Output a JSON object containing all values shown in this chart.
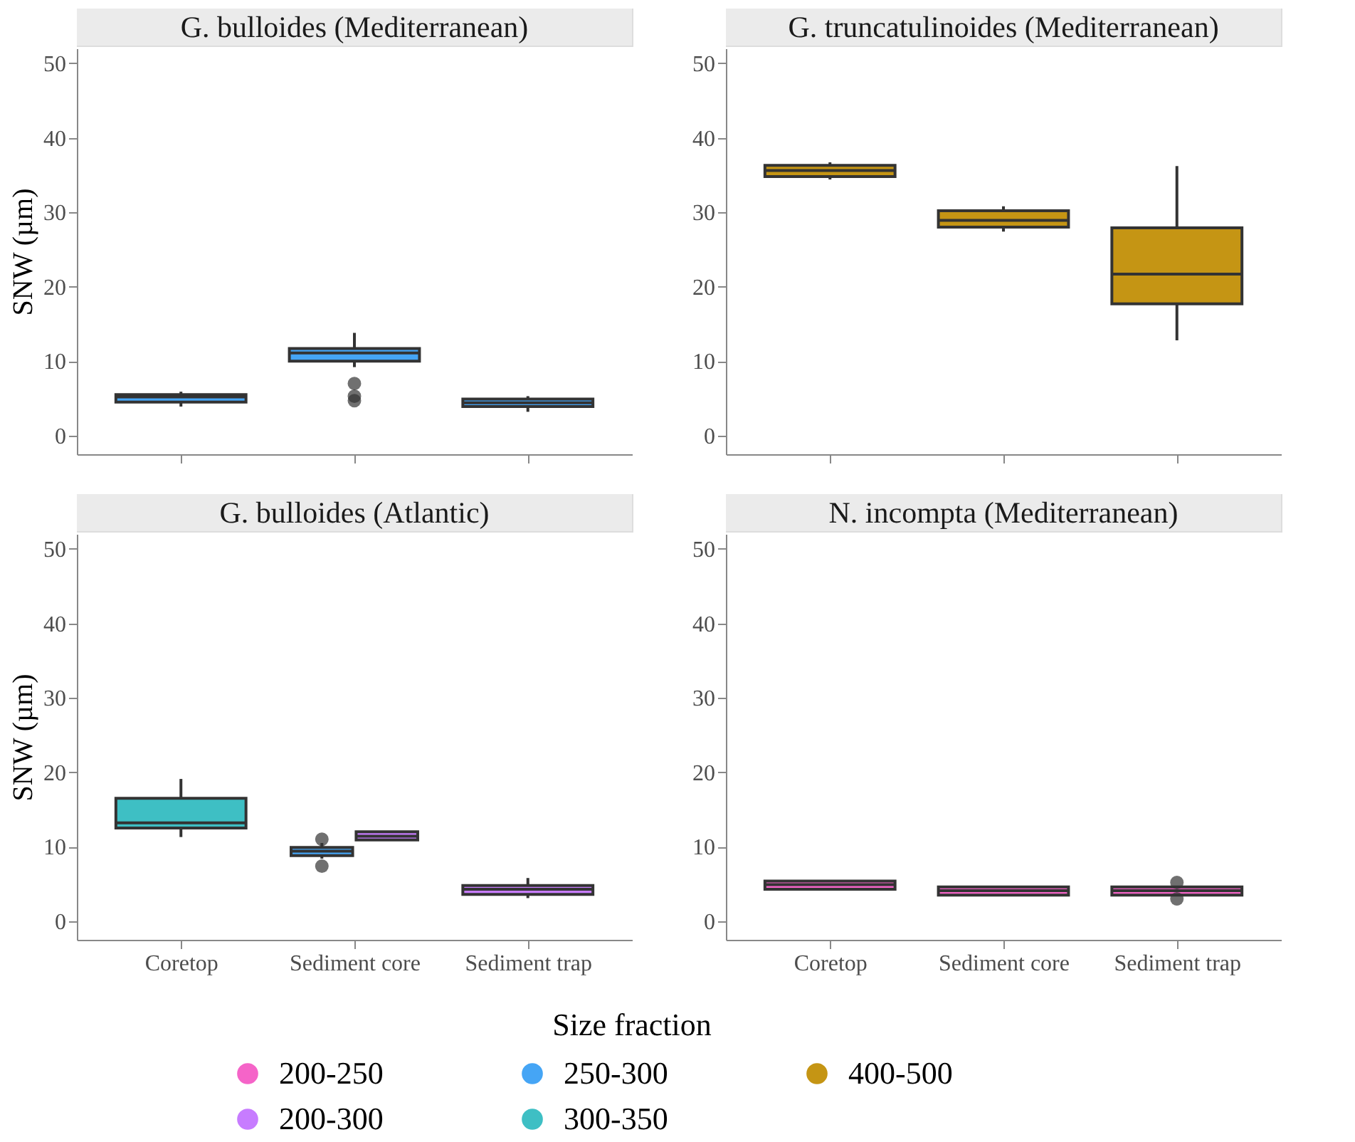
{
  "chart_data": [
    {
      "type": "box",
      "title": "G. bulloides (Mediterranean)",
      "ylabel": "SNW (µm)",
      "categories": [
        "Coretop",
        "Sediment core",
        "Sediment trap"
      ],
      "ylim": [
        -2.5,
        52
      ],
      "yticks": [
        0,
        10,
        20,
        30,
        40,
        50
      ],
      "tick_labels": "y",
      "legend": "bottom",
      "series": [
        {
          "name": "250-300",
          "color": "#45a5f5",
          "boxes": [
            {
              "low": 3.9,
              "q1": 4.5,
              "median": 5.2,
              "q3": 5.5,
              "high": 5.9
            },
            {
              "low": 9.2,
              "q1": 10.0,
              "median": 11.1,
              "q3": 11.7,
              "high": 13.8,
              "outliers": [
                7.0,
                5.3,
                4.7
              ]
            },
            {
              "low": 3.2,
              "q1": 3.9,
              "median": 4.4,
              "q3": 4.9,
              "high": 5.3
            }
          ]
        }
      ]
    },
    {
      "type": "box",
      "title": "G. truncatulinoides (Mediterranean)",
      "categories": [
        "Coretop",
        "Sediment core",
        "Sediment trap"
      ],
      "ylim": [
        -2.5,
        52
      ],
      "yticks": [
        0,
        10,
        20,
        30,
        40,
        50
      ],
      "tick_labels": "y",
      "legend": "bottom",
      "series": [
        {
          "name": "400-500",
          "color": "#c59514",
          "boxes": [
            {
              "low": 34.4,
              "q1": 34.8,
              "median": 35.6,
              "q3": 36.3,
              "high": 36.7
            },
            {
              "low": 27.4,
              "q1": 28.0,
              "median": 28.9,
              "q3": 30.2,
              "high": 30.8
            },
            {
              "low": 12.8,
              "q1": 17.7,
              "median": 21.7,
              "q3": 27.9,
              "high": 36.2
            }
          ]
        }
      ]
    },
    {
      "type": "box",
      "title": "G. bulloides (Atlantic)",
      "ylabel": "SNW (µm)",
      "categories": [
        "Coretop",
        "Sediment core",
        "Sediment trap"
      ],
      "ylim": [
        -2.5,
        52
      ],
      "yticks": [
        0,
        10,
        20,
        30,
        40,
        50
      ],
      "legend": "bottom",
      "series": [
        {
          "name": "300-350",
          "color": "#3ebfc4",
          "boxes": [
            {
              "low": 11.3,
              "q1": 12.5,
              "median": 13.2,
              "q3": 16.5,
              "high": 19.1
            },
            null,
            null
          ]
        },
        {
          "name": "250-300",
          "color": "#45a5f5",
          "boxes": [
            null,
            {
              "low": 8.4,
              "q1": 8.8,
              "median": 9.4,
              "q3": 9.9,
              "high": 10.5,
              "outliers": [
                11.0,
                7.4
              ]
            },
            null
          ]
        },
        {
          "name": "200-300",
          "color": "#c77cff",
          "boxes": [
            null,
            {
              "low": 10.9,
              "q1": 10.9,
              "median": 11.4,
              "q3": 12.0,
              "high": 12.0
            },
            {
              "low": 3.1,
              "q1": 3.6,
              "median": 4.3,
              "q3": 4.8,
              "high": 5.8
            }
          ]
        }
      ]
    },
    {
      "type": "box",
      "title": "N. incompta (Mediterranean)",
      "categories": [
        "Coretop",
        "Sediment core",
        "Sediment trap"
      ],
      "ylim": [
        -2.5,
        52
      ],
      "yticks": [
        0,
        10,
        20,
        30,
        40,
        50
      ],
      "legend": "bottom",
      "legend_title": "Size fraction",
      "series": [
        {
          "name": "200-250",
          "color": "#f564c8",
          "boxes": [
            {
              "low": 4.3,
              "q1": 4.3,
              "median": 4.9,
              "q3": 5.4,
              "high": 5.4
            },
            {
              "low": 3.5,
              "q1": 3.5,
              "median": 4.1,
              "q3": 4.6,
              "high": 4.6
            },
            {
              "low": 3.5,
              "q1": 3.5,
              "median": 4.1,
              "q3": 4.6,
              "high": 4.6,
              "outliers": [
                5.2,
                3.0
              ]
            }
          ]
        }
      ]
    }
  ]
}
